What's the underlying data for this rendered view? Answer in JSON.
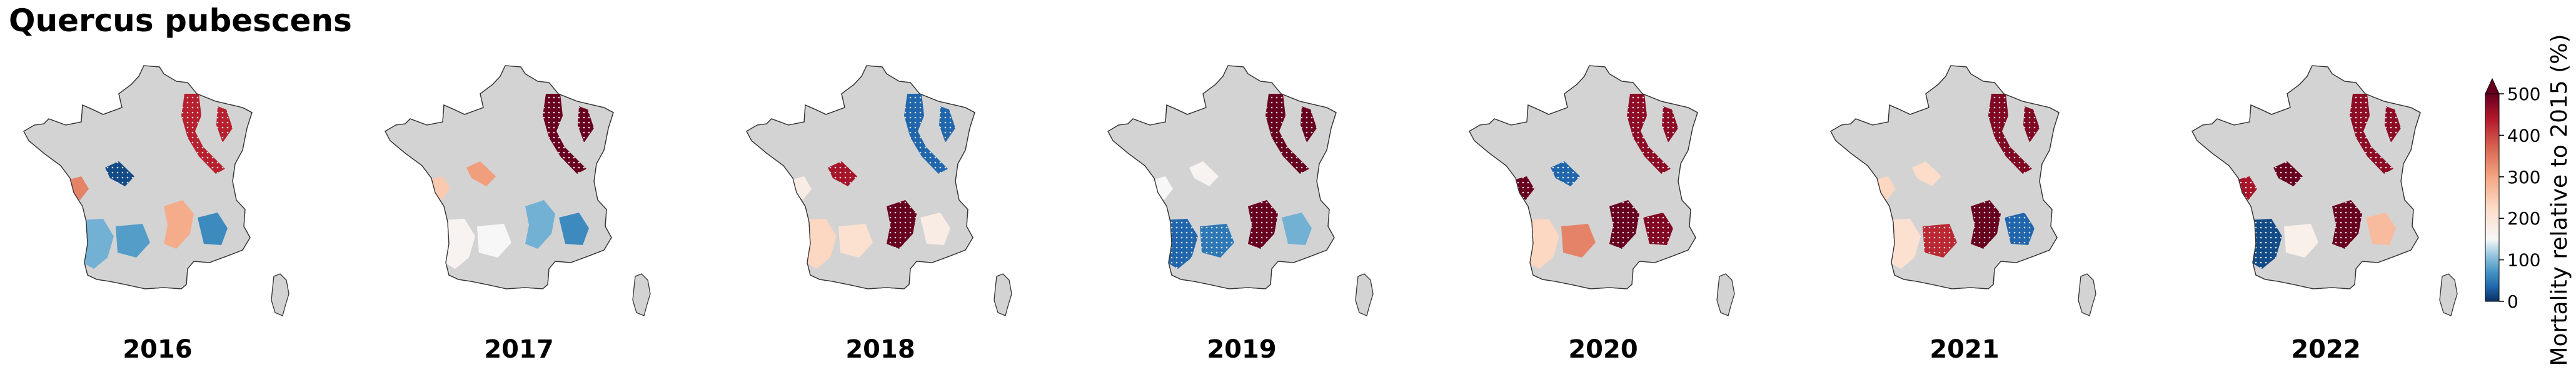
{
  "title": "Quercus pubescens",
  "years": [
    "2016",
    "2017",
    "2018",
    "2019",
    "2020",
    "2021",
    "2022"
  ],
  "colorbar": {
    "label": "Mortality relative to 2015 (%)",
    "ticks": [
      "0",
      "100",
      "200",
      "300",
      "400",
      "500"
    ],
    "tick_values": [
      0,
      100,
      200,
      300,
      400,
      500
    ],
    "extend": "max",
    "colormap": "RdBu_r",
    "center_value": 100,
    "colors": {
      "low": "#053061",
      "mid": "#f7f7f7",
      "high": "#67001f",
      "no_data": "#d3d3d3"
    }
  },
  "map_data": {
    "regions": [
      "north-east",
      "centre",
      "west",
      "south-west",
      "south",
      "south-east",
      "alps"
    ],
    "values": [
      {
        "year": "2016",
        "north-east": 430,
        "centre": 10,
        "west": 300,
        "south-west": 60,
        "south": 50,
        "south-east": 240,
        "alps": 40
      },
      {
        "year": "2017",
        "north-east": 520,
        "centre": 260,
        "west": 200,
        "south-west": 110,
        "south": 100,
        "south-east": 60,
        "alps": 40
      },
      {
        "year": "2018",
        "north-east": 20,
        "centre": 450,
        "west": 130,
        "south-west": 180,
        "south": 160,
        "south-east": 500,
        "alps": 130
      },
      {
        "year": "2019",
        "north-east": 520,
        "centre": 110,
        "west": 100,
        "south-west": 20,
        "south": 30,
        "south-east": 520,
        "alps": 60
      },
      {
        "year": "2020",
        "north-east": 470,
        "centre": 20,
        "west": 520,
        "south-west": 180,
        "south": 300,
        "south-east": 520,
        "alps": 480
      },
      {
        "year": "2021",
        "north-east": 480,
        "centre": 170,
        "west": 180,
        "south-west": 160,
        "south": 420,
        "south-east": 500,
        "alps": 20
      },
      {
        "year": "2022",
        "north-east": 470,
        "centre": 520,
        "west": 450,
        "south-west": 10,
        "south": 120,
        "south-east": 520,
        "alps": 220
      }
    ]
  }
}
